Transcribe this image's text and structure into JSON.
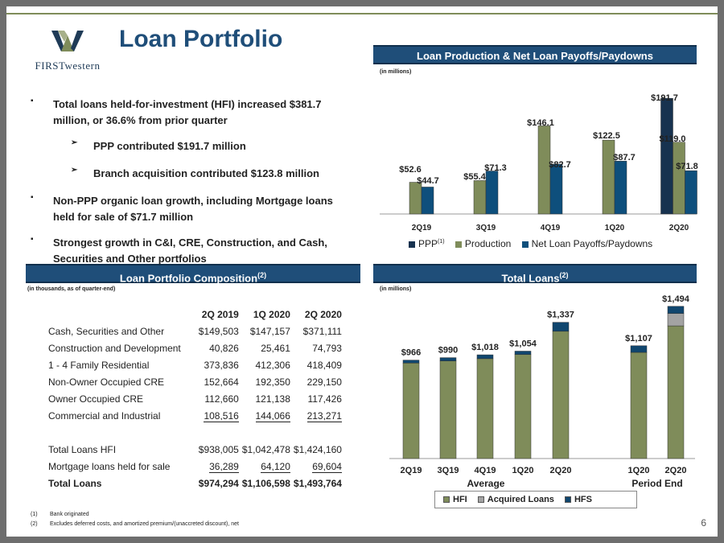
{
  "header": {
    "title": "Loan Portfolio",
    "logo_text": "FIRSTwestern"
  },
  "colors": {
    "navy": "#1f4e79",
    "olive": "#7f8c5a",
    "dark_navy": "#11304d",
    "payoff_blue": "#0e4f7c",
    "acquired_gray": "#a3a3a3",
    "hfs_navy": "#10466e"
  },
  "bullets": [
    {
      "marker": "▪",
      "text": "Total loans held-for-investment (HFI) increased $381.7 million, or 36.6% from prior quarter"
    },
    {
      "marker": "➢",
      "text": "PPP contributed $191.7 million"
    },
    {
      "marker": "➢",
      "text": "Branch acquisition contributed $123.8 million"
    },
    {
      "marker": "▪",
      "text": "Non-PPP organic loan growth, including Mortgage loans held for sale of $71.7 million"
    },
    {
      "marker": "▪",
      "text": "Strongest growth in C&I, CRE, Construction, and Cash, Securities and Other portfolios"
    }
  ],
  "sections": {
    "production_title": "Loan Production & Net Loan Payoffs/Paydowns",
    "production_units": "(in millions)",
    "composition_title": "Loan Portfolio Composition",
    "composition_sup": "(2)",
    "composition_units": "(in thousands, as of quarter-end)",
    "total_title": "Total Loans",
    "total_sup": "(2)",
    "total_units": "(in millions)"
  },
  "composition_table": {
    "columns": [
      "2Q 2019",
      "1Q 2020",
      "2Q 2020"
    ],
    "rows": [
      {
        "label": "Cash, Securities and Other",
        "values": [
          "$149,503",
          "$147,157",
          "$371,111"
        ]
      },
      {
        "label": "Construction and Development",
        "values": [
          "40,826",
          "25,461",
          "74,793"
        ]
      },
      {
        "label": "1 - 4 Family Residential",
        "values": [
          "373,836",
          "412,306",
          "418,409"
        ]
      },
      {
        "label": "Non-Owner Occupied CRE",
        "values": [
          "152,664",
          "192,350",
          "229,150"
        ]
      },
      {
        "label": "Owner Occupied CRE",
        "values": [
          "112,660",
          "121,138",
          "117,426"
        ]
      },
      {
        "label": "Commercial and Industrial",
        "values": [
          "108,516",
          "144,066",
          "213,271"
        ]
      }
    ],
    "total_hfi": {
      "label": "Total Loans HFI",
      "values": [
        "$938,005",
        "$1,042,478",
        "$1,424,160"
      ]
    },
    "held_for_sale": {
      "label": "Mortgage loans held for sale",
      "values": [
        "36,289",
        "64,120",
        "69,604"
      ]
    },
    "total": {
      "label": "Total Loans",
      "values": [
        "$974,294",
        "$1,106,598",
        "$1,493,764"
      ]
    }
  },
  "chart_data": [
    {
      "type": "bar",
      "title": "Loan Production & Net Loan Payoffs/Paydowns",
      "ylabel": "(in millions)",
      "categories": [
        "2Q19",
        "3Q19",
        "4Q19",
        "1Q20",
        "2Q20"
      ],
      "series": [
        {
          "name": "PPP",
          "legend_sup": "(1)",
          "values": [
            null,
            null,
            null,
            null,
            191.7
          ],
          "labels": [
            "",
            "",
            "",
            "",
            "$191.7"
          ],
          "color": "#17324f"
        },
        {
          "name": "Production",
          "values": [
            52.6,
            55.4,
            146.1,
            122.5,
            119.0
          ],
          "labels": [
            "$52.6",
            "$55.4",
            "$146.1",
            "$122.5",
            "$119.0"
          ],
          "color": "#7f8c5a"
        },
        {
          "name": "Net Loan Payoffs/Paydowns",
          "values": [
            44.7,
            71.3,
            82.7,
            87.7,
            71.8
          ],
          "labels": [
            "$44.7",
            "$71.3",
            "$82.7",
            "$87.7",
            "$71.8"
          ],
          "color": "#0e4f7c"
        }
      ],
      "ylim": [
        0,
        200
      ],
      "grid": false,
      "legend": "bottom"
    },
    {
      "type": "bar",
      "stacked": true,
      "title": "Total Loans",
      "ylabel": "(in millions)",
      "categories": [
        "2Q19",
        "3Q19",
        "4Q19",
        "1Q20",
        "2Q20",
        "1Q20",
        "2Q20"
      ],
      "groups": [
        {
          "label": "Average",
          "categories": [
            "2Q19",
            "3Q19",
            "4Q19",
            "1Q20",
            "2Q20"
          ]
        },
        {
          "label": "Period End",
          "categories": [
            "1Q20",
            "2Q20"
          ]
        }
      ],
      "series": [
        {
          "name": "HFI",
          "values": [
            937,
            958,
            980,
            1021,
            1249,
            1042,
            1302
          ],
          "color": "#7f8c5a"
        },
        {
          "name": "Acquired Loans",
          "values": [
            0,
            0,
            0,
            0,
            0,
            0,
            122
          ],
          "color": "#a3a3a3"
        },
        {
          "name": "HFS",
          "values": [
            29,
            32,
            38,
            33,
            88,
            65,
            70
          ],
          "color": "#10466e"
        }
      ],
      "totals": [
        "$966",
        "$990",
        "$1,018",
        "$1,054",
        "$1,337",
        "$1,107",
        "$1,494"
      ],
      "ylim": [
        0,
        1500
      ],
      "grid": false,
      "legend": "bottom"
    }
  ],
  "footnotes": [
    {
      "num": "(1)",
      "text": "Bank originated"
    },
    {
      "num": "(2)",
      "text": "Excludes deferred costs, and amortized premium/(unaccreted discount), net"
    }
  ],
  "page_number": "6"
}
